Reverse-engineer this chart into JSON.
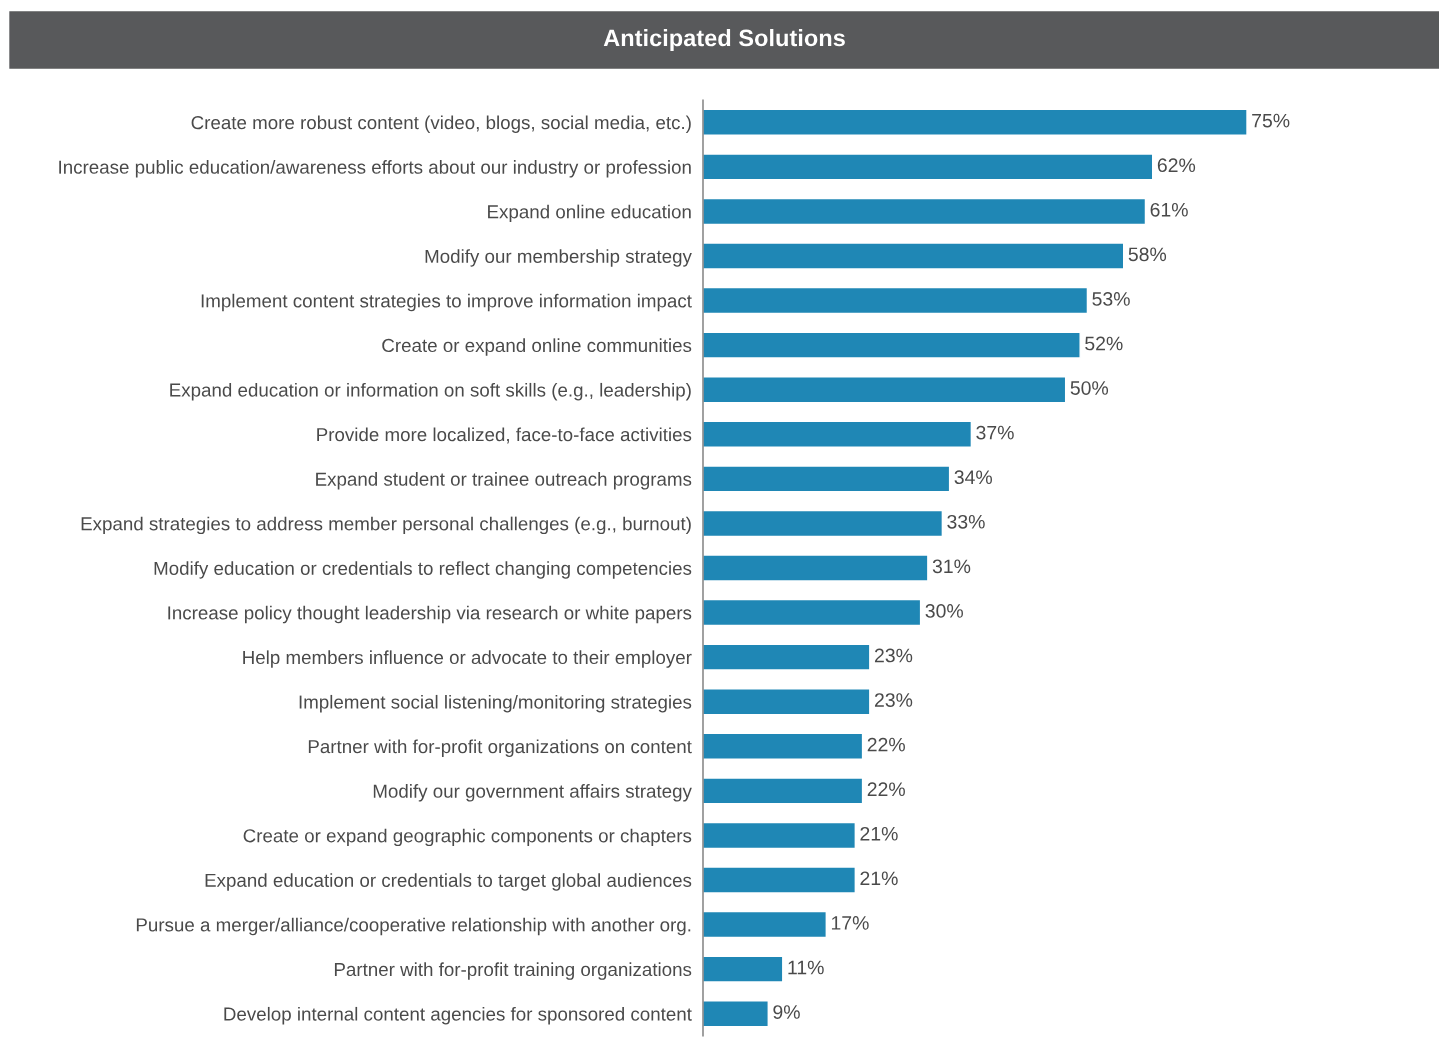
{
  "chart_data": {
    "type": "bar",
    "orientation": "horizontal",
    "title": "Anticipated Solutions",
    "categories": [
      "Create more robust content (video, blogs, social media, etc.)",
      "Increase public education/awareness efforts about our industry or profession",
      "Expand online education",
      "Modify our membership strategy",
      "Implement content strategies to improve information impact",
      "Create or expand online communities",
      "Expand education or information on soft skills (e.g., leadership)",
      "Provide more localized, face-to-face activities",
      "Expand student or trainee outreach programs",
      "Expand strategies to address member personal challenges (e.g., burnout)",
      "Modify education or credentials to reflect changing competencies",
      "Increase policy thought leadership via research or white papers",
      "Help members influence or advocate to their employer",
      "Implement social listening/monitoring strategies",
      "Partner with for-profit organizations on content",
      "Modify our government affairs strategy",
      "Create or expand geographic components or chapters",
      "Expand education or credentials to target global audiences",
      "Pursue a merger/alliance/cooperative relationship with another org.",
      "Partner with for-profit training organizations",
      "Develop internal content agencies for sponsored content"
    ],
    "values": [
      75,
      62,
      61,
      58,
      53,
      52,
      50,
      37,
      34,
      33,
      31,
      30,
      23,
      23,
      22,
      22,
      21,
      21,
      17,
      11,
      9
    ],
    "value_labels": [
      "75%",
      "62%",
      "61%",
      "58%",
      "53%",
      "52%",
      "50%",
      "37%",
      "34%",
      "33%",
      "31%",
      "30%",
      "23%",
      "23%",
      "22%",
      "22%",
      "21%",
      "21%",
      "17%",
      "11%",
      "9%"
    ],
    "color": "#1f87b5",
    "tick_labels": "y",
    "grid": false,
    "legend": false
  }
}
